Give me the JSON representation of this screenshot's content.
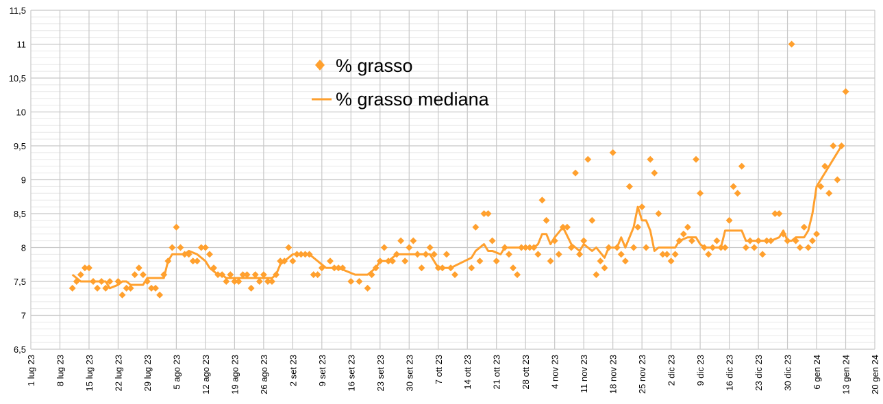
{
  "chart_data": {
    "type": "scatter",
    "title": "",
    "xlabel": "",
    "ylabel": "",
    "ylim": [
      6.5,
      11.5
    ],
    "y_major_step": 0.5,
    "y_minor_step": 0.1,
    "yticks": [
      "6,5",
      "7",
      "7,5",
      "8",
      "8,5",
      "9",
      "9,5",
      "10",
      "10,5",
      "11",
      "11,5"
    ],
    "x_unit": "days since 1 lug 23",
    "xlim": [
      0,
      203
    ],
    "xticks": [
      "1 lug 23",
      "8 lug 23",
      "15 lug 23",
      "22 lug 23",
      "29 lug 23",
      "5 ago 23",
      "12 ago 23",
      "19 ago 23",
      "26 ago 23",
      "2 set 23",
      "9 set 23",
      "16 set 23",
      "23 set 23",
      "30 set 23",
      "7 ott 23",
      "14 ott 23",
      "21 ott 23",
      "28 ott 23",
      "4 nov 23",
      "11 nov 23",
      "18 nov 23",
      "25 nov 23",
      "2 dic 23",
      "9 dic 23",
      "16 dic 23",
      "23 dic 23",
      "30 dic 23",
      "6 gen 24",
      "13 gen 24",
      "20 gen 24"
    ],
    "grid": true,
    "legend_position": "top-center",
    "color": "#ffa02e",
    "series": [
      {
        "name": "% grasso",
        "kind": "points",
        "points": [
          [
            10,
            7.4
          ],
          [
            11,
            7.5
          ],
          [
            12,
            7.6
          ],
          [
            13,
            7.7
          ],
          [
            14,
            7.7
          ],
          [
            15,
            7.5
          ],
          [
            16,
            7.4
          ],
          [
            17,
            7.5
          ],
          [
            18,
            7.4
          ],
          [
            19,
            7.5
          ],
          [
            21,
            7.5
          ],
          [
            22,
            7.3
          ],
          [
            23,
            7.4
          ],
          [
            24,
            7.4
          ],
          [
            25,
            7.6
          ],
          [
            26,
            7.7
          ],
          [
            27,
            7.6
          ],
          [
            28,
            7.5
          ],
          [
            29,
            7.4
          ],
          [
            30,
            7.4
          ],
          [
            31,
            7.3
          ],
          [
            32,
            7.6
          ],
          [
            33,
            7.8
          ],
          [
            34,
            8.0
          ],
          [
            35,
            8.3
          ],
          [
            36,
            8.0
          ],
          [
            37,
            7.9
          ],
          [
            38,
            7.9
          ],
          [
            39,
            7.8
          ],
          [
            40,
            7.8
          ],
          [
            41,
            8.0
          ],
          [
            42,
            8.0
          ],
          [
            43,
            7.9
          ],
          [
            44,
            7.7
          ],
          [
            45,
            7.6
          ],
          [
            46,
            7.6
          ],
          [
            47,
            7.5
          ],
          [
            48,
            7.6
          ],
          [
            49,
            7.5
          ],
          [
            50,
            7.5
          ],
          [
            51,
            7.6
          ],
          [
            52,
            7.6
          ],
          [
            53,
            7.4
          ],
          [
            54,
            7.6
          ],
          [
            55,
            7.5
          ],
          [
            56,
            7.6
          ],
          [
            57,
            7.5
          ],
          [
            58,
            7.5
          ],
          [
            59,
            7.6
          ],
          [
            60,
            7.8
          ],
          [
            61,
            7.8
          ],
          [
            62,
            8.0
          ],
          [
            63,
            7.8
          ],
          [
            64,
            7.9
          ],
          [
            65,
            7.9
          ],
          [
            66,
            7.9
          ],
          [
            67,
            7.9
          ],
          [
            68,
            7.6
          ],
          [
            69,
            7.6
          ],
          [
            70,
            7.7
          ],
          [
            72,
            7.8
          ],
          [
            73,
            7.7
          ],
          [
            74,
            7.7
          ],
          [
            75,
            7.7
          ],
          [
            77,
            7.5
          ],
          [
            79,
            7.5
          ],
          [
            81,
            7.4
          ],
          [
            82,
            7.6
          ],
          [
            83,
            7.7
          ],
          [
            84,
            7.8
          ],
          [
            85,
            8.0
          ],
          [
            86,
            7.8
          ],
          [
            87,
            7.8
          ],
          [
            88,
            7.9
          ],
          [
            89,
            8.1
          ],
          [
            90,
            7.8
          ],
          [
            91,
            8.0
          ],
          [
            92,
            8.1
          ],
          [
            93,
            7.9
          ],
          [
            94,
            7.7
          ],
          [
            95,
            7.9
          ],
          [
            96,
            8.0
          ],
          [
            97,
            7.9
          ],
          [
            98,
            7.7
          ],
          [
            99,
            7.7
          ],
          [
            100,
            7.9
          ],
          [
            101,
            7.7
          ],
          [
            102,
            7.6
          ],
          [
            106,
            7.7
          ],
          [
            107,
            8.3
          ],
          [
            108,
            7.8
          ],
          [
            109,
            8.5
          ],
          [
            110,
            8.5
          ],
          [
            111,
            8.1
          ],
          [
            112,
            7.8
          ],
          [
            114,
            8.0
          ],
          [
            115,
            7.9
          ],
          [
            116,
            7.7
          ],
          [
            117,
            7.6
          ],
          [
            118,
            8.0
          ],
          [
            119,
            8.0
          ],
          [
            120,
            8.0
          ],
          [
            121,
            8.0
          ],
          [
            122,
            7.9
          ],
          [
            123,
            8.7
          ],
          [
            124,
            8.4
          ],
          [
            125,
            7.8
          ],
          [
            126,
            8.1
          ],
          [
            127,
            7.9
          ],
          [
            128,
            8.3
          ],
          [
            129,
            8.3
          ],
          [
            130,
            8.0
          ],
          [
            131,
            9.1
          ],
          [
            132,
            7.9
          ],
          [
            133,
            8.1
          ],
          [
            134,
            9.3
          ],
          [
            135,
            8.4
          ],
          [
            136,
            7.6
          ],
          [
            137,
            7.8
          ],
          [
            138,
            7.7
          ],
          [
            139,
            8.0
          ],
          [
            140,
            9.4
          ],
          [
            141,
            8.0
          ],
          [
            142,
            7.9
          ],
          [
            143,
            7.8
          ],
          [
            144,
            8.9
          ],
          [
            145,
            8.0
          ],
          [
            146,
            8.3
          ],
          [
            147,
            8.6
          ],
          [
            148,
            8.0
          ],
          [
            149,
            9.3
          ],
          [
            150,
            9.1
          ],
          [
            151,
            8.5
          ],
          [
            152,
            7.9
          ],
          [
            153,
            7.9
          ],
          [
            154,
            7.8
          ],
          [
            155,
            7.9
          ],
          [
            156,
            8.1
          ],
          [
            157,
            8.2
          ],
          [
            158,
            8.3
          ],
          [
            159,
            8.1
          ],
          [
            160,
            9.3
          ],
          [
            161,
            8.8
          ],
          [
            162,
            8.0
          ],
          [
            163,
            7.9
          ],
          [
            164,
            8.0
          ],
          [
            165,
            8.1
          ],
          [
            166,
            8.0
          ],
          [
            167,
            8.0
          ],
          [
            168,
            8.4
          ],
          [
            169,
            8.9
          ],
          [
            170,
            8.8
          ],
          [
            171,
            9.2
          ],
          [
            172,
            8.0
          ],
          [
            173,
            8.1
          ],
          [
            174,
            8.0
          ],
          [
            175,
            8.1
          ],
          [
            176,
            7.9
          ],
          [
            177,
            8.1
          ],
          [
            178,
            8.1
          ],
          [
            179,
            8.5
          ],
          [
            180,
            8.5
          ],
          [
            181,
            8.2
          ],
          [
            182,
            8.1
          ],
          [
            183,
            11.0
          ],
          [
            184,
            8.1
          ],
          [
            185,
            8.0
          ],
          [
            186,
            8.3
          ],
          [
            187,
            8.0
          ],
          [
            188,
            8.1
          ],
          [
            189,
            8.2
          ],
          [
            190,
            8.9
          ],
          [
            191,
            9.2
          ],
          [
            192,
            8.8
          ],
          [
            193,
            9.5
          ],
          [
            194,
            9.0
          ],
          [
            195,
            9.5
          ],
          [
            196,
            10.3
          ]
        ]
      },
      {
        "name": "% grasso mediana",
        "kind": "line",
        "points": [
          [
            10,
            7.6
          ],
          [
            11,
            7.55
          ],
          [
            12,
            7.5
          ],
          [
            18,
            7.5
          ],
          [
            19,
            7.4
          ],
          [
            21,
            7.45
          ],
          [
            22,
            7.5
          ],
          [
            23,
            7.5
          ],
          [
            24,
            7.45
          ],
          [
            27,
            7.45
          ],
          [
            28,
            7.55
          ],
          [
            32,
            7.55
          ],
          [
            33,
            7.8
          ],
          [
            34,
            7.9
          ],
          [
            37,
            7.9
          ],
          [
            38,
            7.95
          ],
          [
            40,
            7.9
          ],
          [
            42,
            7.8
          ],
          [
            43,
            7.7
          ],
          [
            45,
            7.6
          ],
          [
            46,
            7.6
          ],
          [
            47,
            7.55
          ],
          [
            58,
            7.55
          ],
          [
            59,
            7.6
          ],
          [
            60,
            7.75
          ],
          [
            61,
            7.8
          ],
          [
            63,
            7.9
          ],
          [
            67,
            7.9
          ],
          [
            69,
            7.8
          ],
          [
            71,
            7.7
          ],
          [
            74,
            7.7
          ],
          [
            76,
            7.65
          ],
          [
            78,
            7.6
          ],
          [
            81,
            7.6
          ],
          [
            83,
            7.7
          ],
          [
            84,
            7.8
          ],
          [
            86,
            7.8
          ],
          [
            88,
            7.9
          ],
          [
            96,
            7.9
          ],
          [
            97,
            7.8
          ],
          [
            98,
            7.7
          ],
          [
            101,
            7.7
          ],
          [
            106,
            7.85
          ],
          [
            107,
            7.95
          ],
          [
            109,
            8.05
          ],
          [
            110,
            7.95
          ],
          [
            111,
            7.95
          ],
          [
            113,
            7.9
          ],
          [
            114,
            8.0
          ],
          [
            121,
            8.0
          ],
          [
            122,
            8.05
          ],
          [
            123,
            8.2
          ],
          [
            124,
            8.2
          ],
          [
            125,
            8.05
          ],
          [
            126,
            8.15
          ],
          [
            128,
            8.3
          ],
          [
            130,
            8.05
          ],
          [
            132,
            7.95
          ],
          [
            133,
            8.05
          ],
          [
            135,
            7.95
          ],
          [
            136,
            8.0
          ],
          [
            138,
            7.85
          ],
          [
            139,
            8.0
          ],
          [
            141,
            8.0
          ],
          [
            142,
            8.15
          ],
          [
            143,
            8.0
          ],
          [
            145,
            8.3
          ],
          [
            146,
            8.6
          ],
          [
            147,
            8.4
          ],
          [
            148,
            8.4
          ],
          [
            149,
            8.25
          ],
          [
            150,
            7.95
          ],
          [
            151,
            8.0
          ],
          [
            155,
            8.0
          ],
          [
            156,
            8.1
          ],
          [
            158,
            8.15
          ],
          [
            160,
            8.15
          ],
          [
            161,
            8.05
          ],
          [
            162,
            8.0
          ],
          [
            166,
            8.0
          ],
          [
            167,
            8.25
          ],
          [
            171,
            8.25
          ],
          [
            172,
            8.1
          ],
          [
            178,
            8.1
          ],
          [
            180,
            8.15
          ],
          [
            181,
            8.25
          ],
          [
            182,
            8.1
          ],
          [
            183,
            8.1
          ],
          [
            184,
            8.15
          ],
          [
            186,
            8.15
          ],
          [
            187,
            8.25
          ],
          [
            188,
            8.5
          ],
          [
            189,
            8.9
          ],
          [
            191,
            9.1
          ],
          [
            193,
            9.3
          ],
          [
            195,
            9.5
          ]
        ]
      }
    ]
  }
}
